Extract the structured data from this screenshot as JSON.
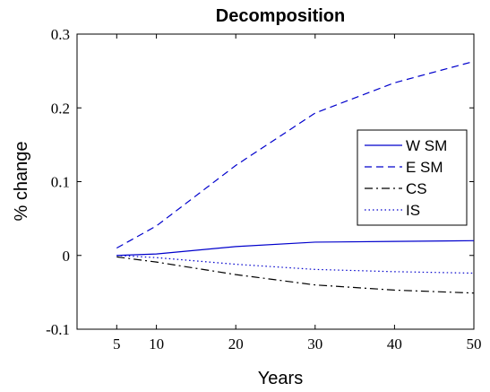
{
  "chart_data": {
    "type": "line",
    "title": "Decomposition",
    "xlabel": "Years",
    "ylabel": "% change",
    "xlim": [
      0,
      50
    ],
    "ylim": [
      -0.1,
      0.3
    ],
    "xticks": [
      5,
      10,
      20,
      30,
      40,
      50
    ],
    "yticks": [
      -0.1,
      0,
      0.1,
      0.2,
      0.3
    ],
    "ytick_labels": [
      "-0.1",
      "0",
      "0.1",
      "0.2",
      "0.3"
    ],
    "grid": false,
    "legend_position": "right",
    "x": [
      5,
      10,
      20,
      30,
      40,
      50
    ],
    "series": [
      {
        "name": "W SM",
        "values": [
          0.0,
          0.002,
          0.012,
          0.018,
          0.019,
          0.02
        ],
        "color": "#0000cc",
        "dash": "solid"
      },
      {
        "name": "E SM",
        "values": [
          0.01,
          0.04,
          0.122,
          0.193,
          0.234,
          0.263
        ],
        "color": "#0000cc",
        "dash": "dashed"
      },
      {
        "name": "CS",
        "values": [
          -0.002,
          -0.009,
          -0.026,
          -0.04,
          -0.047,
          -0.051
        ],
        "color": "#000000",
        "dash": "dashdot"
      },
      {
        "name": "IS",
        "values": [
          0.0,
          -0.003,
          -0.012,
          -0.019,
          -0.022,
          -0.024
        ],
        "color": "#0000cc",
        "dash": "dotted"
      }
    ]
  }
}
